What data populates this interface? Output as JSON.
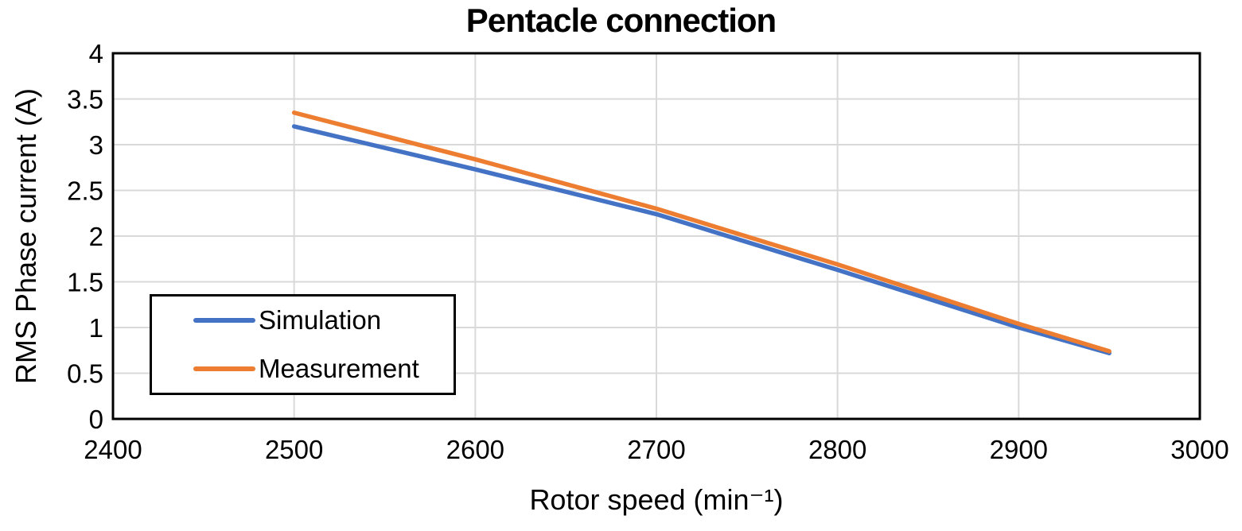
{
  "chart_data": {
    "type": "line",
    "title": "Pentacle connection",
    "xlabel": "Rotor speed (min⁻¹)",
    "ylabel": "RMS Phase current (A)",
    "x": [
      2500,
      2600,
      2700,
      2800,
      2900,
      2950
    ],
    "series": [
      {
        "name": "Simulation",
        "color": "#4472C4",
        "values": [
          3.2,
          2.73,
          2.24,
          1.63,
          1.0,
          0.72
        ]
      },
      {
        "name": "Measurement",
        "color": "#ED7D31",
        "values": [
          3.35,
          2.84,
          2.3,
          1.69,
          1.04,
          0.74
        ]
      }
    ],
    "xlim": [
      2400,
      3000
    ],
    "ylim": [
      0,
      4
    ],
    "x_ticks": [
      2400,
      2500,
      2600,
      2700,
      2800,
      2900,
      3000
    ],
    "y_ticks": [
      0,
      0.5,
      1,
      1.5,
      2,
      2.5,
      3,
      3.5,
      4
    ],
    "grid": true,
    "legend_position": "inside-bottom-left",
    "colors": {
      "grid": "#D9D9D9",
      "plot_border": "#000000",
      "background": "#FFFFFF",
      "text": "#000000"
    }
  }
}
